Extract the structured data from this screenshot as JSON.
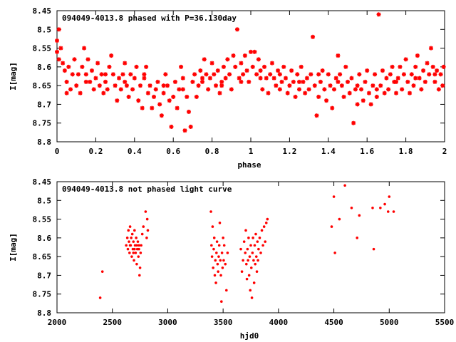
{
  "colors": {
    "points": "#ff0000",
    "axes": "#000000",
    "background": "#ffffff"
  },
  "chart_data": [
    {
      "type": "scatter",
      "title": "094049-4013.8 phased with P=36.130day",
      "xlabel": "phase",
      "ylabel": "I[mag]",
      "xlim": [
        0,
        2
      ],
      "ylim": [
        8.45,
        8.8
      ],
      "y_inverted": true,
      "grid": false,
      "marker": "star",
      "xticks": [
        0,
        0.2,
        0.4,
        0.6,
        0.8,
        1,
        1.2,
        1.4,
        1.6,
        1.8,
        2
      ],
      "xtick_labels": [
        "0",
        "0.2",
        "0.4",
        "0.6",
        "0.8",
        "1",
        "1.2",
        "1.4",
        "1.6",
        "1.8",
        "2"
      ],
      "yticks": [
        8.45,
        8.5,
        8.55,
        8.6,
        8.65,
        8.7,
        8.75,
        8.8
      ],
      "ytick_labels": [
        "8.45",
        "8.5",
        "8.55",
        "8.6",
        "8.65",
        "8.7",
        "8.75",
        "8.8"
      ],
      "points": [
        [
          0.0,
          8.53
        ],
        [
          0.0,
          8.56
        ],
        [
          0.01,
          8.5
        ],
        [
          0.01,
          8.58
        ],
        [
          0.02,
          8.55
        ],
        [
          0.03,
          8.59
        ],
        [
          0.04,
          8.61
        ],
        [
          0.05,
          8.64
        ],
        [
          0.06,
          8.6
        ],
        [
          0.07,
          8.66
        ],
        [
          0.08,
          8.62
        ],
        [
          0.09,
          8.58
        ],
        [
          0.1,
          8.65
        ],
        [
          0.11,
          8.62
        ],
        [
          0.12,
          8.67
        ],
        [
          0.13,
          8.6
        ],
        [
          0.14,
          8.55
        ],
        [
          0.15,
          8.62
        ],
        [
          0.16,
          8.58
        ],
        [
          0.17,
          8.64
        ],
        [
          0.18,
          8.61
        ],
        [
          0.19,
          8.66
        ],
        [
          0.2,
          8.63
        ],
        [
          0.21,
          8.59
        ],
        [
          0.22,
          8.65
        ],
        [
          0.23,
          8.62
        ],
        [
          0.24,
          8.67
        ],
        [
          0.25,
          8.64
        ],
        [
          0.26,
          8.66
        ],
        [
          0.27,
          8.6
        ],
        [
          0.28,
          8.57
        ],
        [
          0.29,
          8.62
        ],
        [
          0.3,
          8.65
        ],
        [
          0.31,
          8.69
        ],
        [
          0.32,
          8.63
        ],
        [
          0.33,
          8.66
        ],
        [
          0.34,
          8.62
        ],
        [
          0.35,
          8.59
        ],
        [
          0.36,
          8.65
        ],
        [
          0.37,
          8.68
        ],
        [
          0.38,
          8.62
        ],
        [
          0.39,
          8.66
        ],
        [
          0.4,
          8.63
        ],
        [
          0.41,
          8.6
        ],
        [
          0.42,
          8.69
        ],
        [
          0.43,
          8.65
        ],
        [
          0.44,
          8.71
        ],
        [
          0.45,
          8.63
        ],
        [
          0.46,
          8.6
        ],
        [
          0.47,
          8.67
        ],
        [
          0.48,
          8.65
        ],
        [
          0.49,
          8.71
        ],
        [
          0.5,
          8.68
        ],
        [
          0.51,
          8.66
        ],
        [
          0.52,
          8.64
        ],
        [
          0.53,
          8.7
        ],
        [
          0.54,
          8.73
        ],
        [
          0.55,
          8.67
        ],
        [
          0.56,
          8.62
        ],
        [
          0.57,
          8.65
        ],
        [
          0.58,
          8.69
        ],
        [
          0.59,
          8.76
        ],
        [
          0.6,
          8.68
        ],
        [
          0.61,
          8.64
        ],
        [
          0.62,
          8.71
        ],
        [
          0.63,
          8.66
        ],
        [
          0.64,
          8.6
        ],
        [
          0.65,
          8.63
        ],
        [
          0.66,
          8.77
        ],
        [
          0.67,
          8.68
        ],
        [
          0.68,
          8.72
        ],
        [
          0.69,
          8.76
        ],
        [
          0.7,
          8.64
        ],
        [
          0.71,
          8.62
        ],
        [
          0.72,
          8.68
        ],
        [
          0.73,
          8.65
        ],
        [
          0.74,
          8.61
        ],
        [
          0.75,
          8.64
        ],
        [
          0.76,
          8.58
        ],
        [
          0.77,
          8.62
        ],
        [
          0.78,
          8.66
        ],
        [
          0.79,
          8.63
        ],
        [
          0.8,
          8.59
        ],
        [
          0.81,
          8.62
        ],
        [
          0.82,
          8.65
        ],
        [
          0.83,
          8.61
        ],
        [
          0.84,
          8.67
        ],
        [
          0.85,
          8.64
        ],
        [
          0.86,
          8.6
        ],
        [
          0.87,
          8.63
        ],
        [
          0.88,
          8.58
        ],
        [
          0.89,
          8.62
        ],
        [
          0.9,
          8.66
        ],
        [
          0.91,
          8.57
        ],
        [
          0.92,
          8.6
        ],
        [
          0.93,
          8.5
        ],
        [
          0.94,
          8.63
        ],
        [
          0.95,
          8.59
        ],
        [
          0.96,
          8.62
        ],
        [
          0.97,
          8.57
        ],
        [
          0.98,
          8.61
        ],
        [
          0.99,
          8.64
        ],
        [
          1.0,
          8.56
        ],
        [
          1.01,
          8.6
        ],
        [
          1.02,
          8.56
        ],
        [
          1.03,
          8.62
        ],
        [
          1.04,
          8.58
        ],
        [
          1.05,
          8.61
        ],
        [
          1.06,
          8.66
        ],
        [
          1.07,
          8.6
        ],
        [
          1.08,
          8.63
        ],
        [
          1.09,
          8.67
        ],
        [
          1.1,
          8.62
        ],
        [
          1.11,
          8.59
        ],
        [
          1.12,
          8.63
        ],
        [
          1.13,
          8.65
        ],
        [
          1.14,
          8.61
        ],
        [
          1.15,
          8.66
        ],
        [
          1.16,
          8.64
        ],
        [
          1.17,
          8.6
        ],
        [
          1.18,
          8.63
        ],
        [
          1.19,
          8.67
        ],
        [
          1.2,
          8.65
        ],
        [
          1.21,
          8.61
        ],
        [
          1.22,
          8.64
        ],
        [
          1.23,
          8.68
        ],
        [
          1.24,
          8.62
        ],
        [
          1.25,
          8.66
        ],
        [
          1.26,
          8.6
        ],
        [
          1.27,
          8.64
        ],
        [
          1.28,
          8.67
        ],
        [
          1.29,
          8.63
        ],
        [
          1.3,
          8.66
        ],
        [
          1.31,
          8.62
        ],
        [
          1.32,
          8.52
        ],
        [
          1.33,
          8.65
        ],
        [
          1.34,
          8.73
        ],
        [
          1.35,
          8.68
        ],
        [
          1.36,
          8.64
        ],
        [
          1.37,
          8.61
        ],
        [
          1.38,
          8.66
        ],
        [
          1.39,
          8.69
        ],
        [
          1.4,
          8.62
        ],
        [
          1.41,
          8.65
        ],
        [
          1.42,
          8.71
        ],
        [
          1.43,
          8.66
        ],
        [
          1.44,
          8.63
        ],
        [
          1.45,
          8.57
        ],
        [
          1.46,
          8.62
        ],
        [
          1.47,
          8.65
        ],
        [
          1.48,
          8.68
        ],
        [
          1.49,
          8.6
        ],
        [
          1.5,
          8.64
        ],
        [
          1.51,
          8.67
        ],
        [
          1.52,
          8.63
        ],
        [
          1.53,
          8.75
        ],
        [
          1.54,
          8.66
        ],
        [
          1.55,
          8.7
        ],
        [
          1.56,
          8.62
        ],
        [
          1.57,
          8.66
        ],
        [
          1.58,
          8.69
        ],
        [
          1.59,
          8.64
        ],
        [
          1.6,
          8.61
        ],
        [
          1.61,
          8.67
        ],
        [
          1.62,
          8.7
        ],
        [
          1.63,
          8.65
        ],
        [
          1.64,
          8.62
        ],
        [
          1.65,
          8.68
        ],
        [
          1.66,
          8.46
        ],
        [
          1.67,
          8.65
        ],
        [
          1.68,
          8.61
        ],
        [
          1.69,
          8.67
        ],
        [
          1.7,
          8.63
        ],
        [
          1.71,
          8.66
        ],
        [
          1.72,
          8.62
        ],
        [
          1.73,
          8.6
        ],
        [
          1.74,
          8.64
        ],
        [
          1.75,
          8.67
        ],
        [
          1.76,
          8.63
        ],
        [
          1.77,
          8.6
        ],
        [
          1.78,
          8.66
        ],
        [
          1.79,
          8.62
        ],
        [
          1.8,
          8.58
        ],
        [
          1.81,
          8.64
        ],
        [
          1.82,
          8.67
        ],
        [
          1.83,
          8.62
        ],
        [
          1.84,
          8.65
        ],
        [
          1.85,
          8.6
        ],
        [
          1.86,
          8.57
        ],
        [
          1.87,
          8.63
        ],
        [
          1.88,
          8.66
        ],
        [
          1.89,
          8.61
        ],
        [
          1.9,
          8.64
        ],
        [
          1.91,
          8.59
        ],
        [
          1.92,
          8.62
        ],
        [
          1.93,
          8.55
        ],
        [
          1.94,
          8.6
        ],
        [
          1.95,
          8.64
        ],
        [
          1.96,
          8.61
        ],
        [
          1.97,
          8.66
        ],
        [
          1.98,
          8.62
        ],
        [
          1.99,
          8.65
        ],
        [
          1.995,
          8.6
        ],
        [
          0.05,
          8.67
        ],
        [
          0.15,
          8.64
        ],
        [
          0.25,
          8.62
        ],
        [
          0.35,
          8.64
        ],
        [
          0.45,
          8.62
        ],
        [
          0.55,
          8.65
        ],
        [
          0.65,
          8.66
        ],
        [
          0.75,
          8.63
        ],
        [
          0.85,
          8.65
        ],
        [
          0.95,
          8.64
        ],
        [
          1.05,
          8.63
        ],
        [
          1.15,
          8.62
        ],
        [
          1.25,
          8.64
        ],
        [
          1.35,
          8.62
        ],
        [
          1.45,
          8.64
        ],
        [
          1.55,
          8.65
        ],
        [
          1.65,
          8.66
        ],
        [
          1.75,
          8.64
        ],
        [
          1.85,
          8.63
        ],
        [
          1.95,
          8.62
        ]
      ]
    },
    {
      "type": "scatter",
      "title": "094049-4013.8 not phased light curve",
      "xlabel": "hjd0",
      "ylabel": "I[mag]",
      "xlim": [
        2000,
        5500
      ],
      "ylim": [
        8.45,
        8.8
      ],
      "y_inverted": true,
      "grid": false,
      "marker": "dot",
      "xticks": [
        2000,
        2500,
        3000,
        3500,
        4000,
        4500,
        5000,
        5500
      ],
      "xtick_labels": [
        "2000",
        "2500",
        "3000",
        "3500",
        "4000",
        "4500",
        "5000",
        "5500"
      ],
      "yticks": [
        8.45,
        8.5,
        8.55,
        8.6,
        8.65,
        8.7,
        8.75,
        8.8
      ],
      "ytick_labels": [
        "8.45",
        "8.5",
        "8.55",
        "8.6",
        "8.65",
        "8.7",
        "8.75",
        "8.8"
      ],
      "points": [
        [
          2390,
          8.76
        ],
        [
          2410,
          8.69
        ],
        [
          2625,
          8.62
        ],
        [
          2635,
          8.6
        ],
        [
          2640,
          8.63
        ],
        [
          2645,
          8.58
        ],
        [
          2650,
          8.61
        ],
        [
          2655,
          8.64
        ],
        [
          2660,
          8.57
        ],
        [
          2665,
          8.62
        ],
        [
          2670,
          8.6
        ],
        [
          2675,
          8.65
        ],
        [
          2680,
          8.59
        ],
        [
          2685,
          8.63
        ],
        [
          2690,
          8.61
        ],
        [
          2695,
          8.66
        ],
        [
          2700,
          8.58
        ],
        [
          2705,
          8.62
        ],
        [
          2710,
          8.64
        ],
        [
          2715,
          8.6
        ],
        [
          2720,
          8.67
        ],
        [
          2725,
          8.63
        ],
        [
          2730,
          8.61
        ],
        [
          2735,
          8.65
        ],
        [
          2740,
          8.62
        ],
        [
          2745,
          8.7
        ],
        [
          2750,
          8.68
        ],
        [
          2755,
          8.64
        ],
        [
          2760,
          8.62
        ],
        [
          2770,
          8.59
        ],
        [
          2780,
          8.57
        ],
        [
          2800,
          8.53
        ],
        [
          2810,
          8.6
        ],
        [
          2815,
          8.55
        ],
        [
          2820,
          8.58
        ],
        [
          2660,
          8.62
        ],
        [
          2690,
          8.64
        ],
        [
          2700,
          8.63
        ],
        [
          2720,
          8.62
        ],
        [
          2740,
          8.63
        ],
        [
          3390,
          8.53
        ],
        [
          3395,
          8.62
        ],
        [
          3400,
          8.65
        ],
        [
          3405,
          8.57
        ],
        [
          3410,
          8.68
        ],
        [
          3415,
          8.63
        ],
        [
          3420,
          8.6
        ],
        [
          3425,
          8.7
        ],
        [
          3430,
          8.66
        ],
        [
          3435,
          8.72
        ],
        [
          3440,
          8.64
        ],
        [
          3445,
          8.61
        ],
        [
          3450,
          8.67
        ],
        [
          3455,
          8.69
        ],
        [
          3460,
          8.65
        ],
        [
          3465,
          8.62
        ],
        [
          3470,
          8.56
        ],
        [
          3475,
          8.66
        ],
        [
          3480,
          8.7
        ],
        [
          3485,
          8.77
        ],
        [
          3490,
          8.64
        ],
        [
          3495,
          8.68
        ],
        [
          3500,
          8.6
        ],
        [
          3505,
          8.66
        ],
        [
          3510,
          8.62
        ],
        [
          3520,
          8.67
        ],
        [
          3530,
          8.74
        ],
        [
          3540,
          8.64
        ],
        [
          3660,
          8.63
        ],
        [
          3670,
          8.69
        ],
        [
          3680,
          8.66
        ],
        [
          3690,
          8.61
        ],
        [
          3700,
          8.64
        ],
        [
          3705,
          8.58
        ],
        [
          3710,
          8.67
        ],
        [
          3715,
          8.71
        ],
        [
          3720,
          8.63
        ],
        [
          3725,
          8.66
        ],
        [
          3730,
          8.6
        ],
        [
          3735,
          8.7
        ],
        [
          3740,
          8.65
        ],
        [
          3745,
          8.74
        ],
        [
          3750,
          8.62
        ],
        [
          3755,
          8.68
        ],
        [
          3760,
          8.76
        ],
        [
          3765,
          8.64
        ],
        [
          3770,
          8.6
        ],
        [
          3775,
          8.66
        ],
        [
          3780,
          8.72
        ],
        [
          3785,
          8.62
        ],
        [
          3790,
          8.67
        ],
        [
          3795,
          8.59
        ],
        [
          3800,
          8.65
        ],
        [
          3805,
          8.69
        ],
        [
          3810,
          8.61
        ],
        [
          3815,
          8.66
        ],
        [
          3820,
          8.63
        ],
        [
          3830,
          8.6
        ],
        [
          3840,
          8.64
        ],
        [
          3850,
          8.58
        ],
        [
          3860,
          8.62
        ],
        [
          3870,
          8.57
        ],
        [
          3880,
          8.61
        ],
        [
          3890,
          8.56
        ],
        [
          3900,
          8.55
        ],
        [
          4480,
          8.57
        ],
        [
          4500,
          8.49
        ],
        [
          4510,
          8.64
        ],
        [
          4550,
          8.55
        ],
        [
          4600,
          8.46
        ],
        [
          4660,
          8.52
        ],
        [
          4710,
          8.6
        ],
        [
          4730,
          8.54
        ],
        [
          4850,
          8.52
        ],
        [
          4860,
          8.63
        ],
        [
          4920,
          8.52
        ],
        [
          4960,
          8.51
        ],
        [
          4990,
          8.53
        ],
        [
          5000,
          8.49
        ],
        [
          5040,
          8.53
        ]
      ]
    }
  ]
}
